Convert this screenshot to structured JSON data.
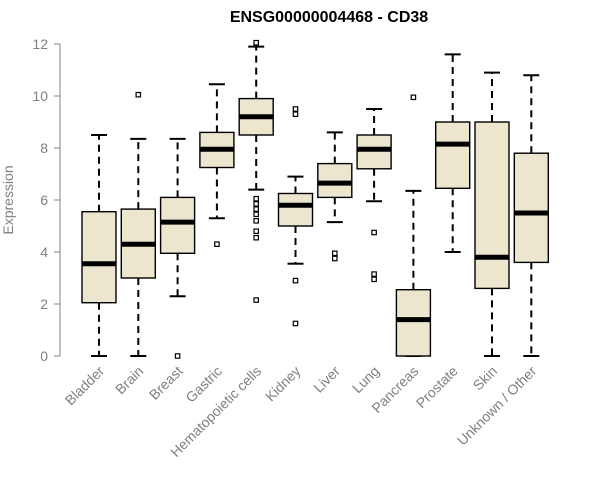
{
  "chart_data": {
    "type": "boxplot",
    "title": "ENSG00000004468 - CD38",
    "xlabel": "",
    "ylabel": "Expression",
    "ylim": [
      0,
      12
    ],
    "yticks": [
      0,
      2,
      4,
      6,
      8,
      10,
      12
    ],
    "grid": false,
    "categories": [
      "Bladder",
      "Brain",
      "Breast",
      "Gastric",
      "Hematopoietic cells",
      "Kidney",
      "Liver",
      "Lung",
      "Pancreas",
      "Prostate",
      "Skin",
      "Unknown / Other"
    ],
    "boxes": [
      {
        "label": "Bladder",
        "whisker_low": 0.0,
        "q1": 2.05,
        "median": 3.55,
        "q3": 5.55,
        "whisker_high": 8.5,
        "outliers": []
      },
      {
        "label": "Brain",
        "whisker_low": 0.0,
        "q1": 3.0,
        "median": 4.3,
        "q3": 5.65,
        "whisker_high": 8.35,
        "outliers": [
          10.05
        ]
      },
      {
        "label": "Breast",
        "whisker_low": 2.3,
        "q1": 3.95,
        "median": 5.15,
        "q3": 6.1,
        "whisker_high": 8.35,
        "outliers": [
          0.0
        ]
      },
      {
        "label": "Gastric",
        "whisker_low": 5.3,
        "q1": 7.25,
        "median": 7.95,
        "q3": 8.6,
        "whisker_high": 10.45,
        "outliers": [
          4.3
        ]
      },
      {
        "label": "Hematopoietic cells",
        "whisker_low": 6.4,
        "q1": 8.5,
        "median": 9.2,
        "q3": 9.9,
        "whisker_high": 11.9,
        "outliers": [
          12.05,
          6.05,
          5.85,
          5.65,
          5.45,
          5.2,
          4.8,
          4.55,
          2.15
        ]
      },
      {
        "label": "Kidney",
        "whisker_low": 3.55,
        "q1": 5.0,
        "median": 5.8,
        "q3": 6.25,
        "whisker_high": 6.9,
        "outliers": [
          9.5,
          9.3,
          2.9,
          1.25
        ]
      },
      {
        "label": "Liver",
        "whisker_low": 5.15,
        "q1": 6.1,
        "median": 6.65,
        "q3": 7.4,
        "whisker_high": 8.6,
        "outliers": [
          3.95,
          3.75
        ]
      },
      {
        "label": "Lung",
        "whisker_low": 5.95,
        "q1": 7.2,
        "median": 7.95,
        "q3": 8.5,
        "whisker_high": 9.5,
        "outliers": [
          4.75,
          3.15,
          2.95
        ]
      },
      {
        "label": "Pancreas",
        "whisker_low": 0.0,
        "q1": 0.0,
        "median": 1.4,
        "q3": 2.55,
        "whisker_high": 6.35,
        "outliers": [
          9.95
        ]
      },
      {
        "label": "Prostate",
        "whisker_low": 4.0,
        "q1": 6.45,
        "median": 8.15,
        "q3": 9.0,
        "whisker_high": 11.6,
        "outliers": []
      },
      {
        "label": "Skin",
        "whisker_low": 0.0,
        "q1": 2.6,
        "median": 3.8,
        "q3": 9.0,
        "whisker_high": 10.9,
        "outliers": []
      },
      {
        "label": "Unknown / Other",
        "whisker_low": 0.0,
        "q1": 3.6,
        "median": 5.5,
        "q3": 7.8,
        "whisker_high": 10.8,
        "outliers": []
      }
    ],
    "colors": {
      "box_fill": "#ede6cf",
      "box_stroke": "#000000",
      "median": "#000000",
      "axis": "#808080",
      "tick_text": "#808080",
      "title": "#000000"
    }
  }
}
